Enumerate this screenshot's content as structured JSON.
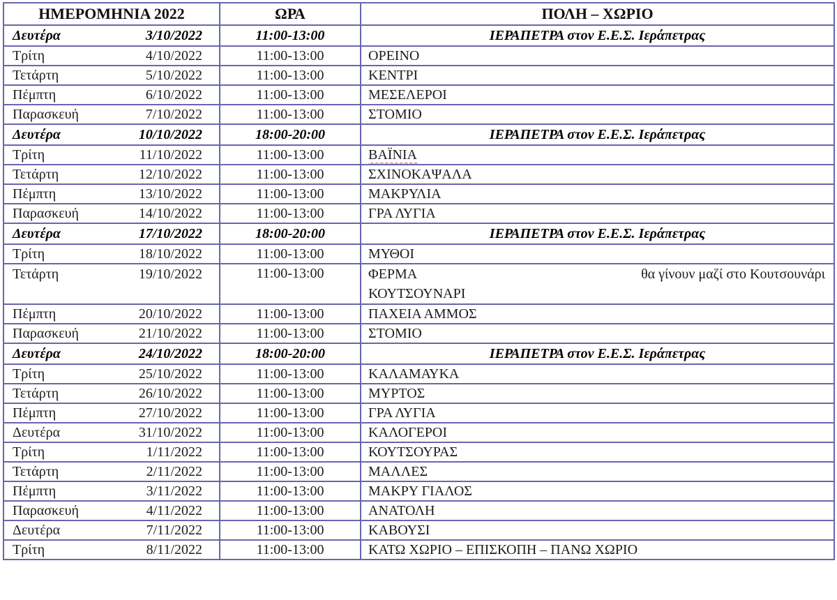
{
  "colors": {
    "table_border": "#6666b0",
    "text": "#1c1c1c",
    "section_text": "#000000",
    "spellcheck_underline": "#e05a5a",
    "background": "#ffffff"
  },
  "table": {
    "columns": [
      "ΗΜΕΡΟΜΗΝΙΑ 2022",
      "ΩΡΑ",
      "ΠΟΛΗ – ΧΩΡΙΟ"
    ],
    "rows": [
      {
        "day": "Δευτέρα",
        "date": "3/10/2022",
        "time": "11:00-13:00",
        "place": "ΙΕΡΑΠΕΤΡΑ στον Ε.Ε.Σ. Ιεράπετρας",
        "section": true
      },
      {
        "day": "Τρίτη",
        "date": "4/10/2022",
        "time": "11:00-13:00",
        "place": "ΟΡΕΙΝΟ"
      },
      {
        "day": "Τετάρτη",
        "date": "5/10/2022",
        "time": "11:00-13:00",
        "place": "ΚΕΝΤΡΙ"
      },
      {
        "day": "Πέμπτη",
        "date": "6/10/2022",
        "time": "11:00-13:00",
        "place": "ΜΕΣΕΛΕΡΟΙ"
      },
      {
        "day": "Παρασκευή",
        "date": "7/10/2022",
        "time": "11:00-13:00",
        "place": "ΣΤΟΜΙΟ"
      },
      {
        "day": "Δευτέρα",
        "date": "10/10/2022",
        "time": "18:00-20:00",
        "place": "ΙΕΡΑΠΕΤΡΑ στον Ε.Ε.Σ. Ιεράπετρας",
        "section": true
      },
      {
        "day": "Τρίτη",
        "date": "11/10/2022",
        "time": "11:00-13:00",
        "place": "ΒΑΪΝΙΑ",
        "misspelled": true
      },
      {
        "day": "Τετάρτη",
        "date": "12/10/2022",
        "time": "11:00-13:00",
        "place": "ΣΧΙΝΟΚΑΨΑΛΑ"
      },
      {
        "day": "Πέμπτη",
        "date": "13/10/2022",
        "time": "11:00-13:00",
        "place": "ΜΑΚΡΥΛΙΑ"
      },
      {
        "day": "Παρασκευή",
        "date": "14/10/2022",
        "time": "11:00-13:00",
        "place": "ΓΡΑ ΛΥΓΙΑ"
      },
      {
        "day": "Δευτέρα",
        "date": "17/10/2022",
        "time": "18:00-20:00",
        "place": "ΙΕΡΑΠΕΤΡΑ στον Ε.Ε.Σ. Ιεράπετρας",
        "section": true
      },
      {
        "day": "Τρίτη",
        "date": "18/10/2022",
        "time": "11:00-13:00",
        "place": "ΜΥΘΟΙ"
      },
      {
        "day": "Τετάρτη",
        "date": "19/10/2022",
        "time": "11:00-13:00",
        "place": "ΦΕΡΜΑ",
        "note": "θα γίνουν μαζί στο Κουτσουνάρι",
        "place_line2": "ΚΟΥΤΣΟΥΝΑΡΙ"
      },
      {
        "day": "Πέμπτη",
        "date": "20/10/2022",
        "time": "11:00-13:00",
        "place": "ΠΑΧΕΙΑ ΑΜΜΟΣ"
      },
      {
        "day": "Παρασκευή",
        "date": "21/10/2022",
        "time": "11:00-13:00",
        "place": "ΣΤΟΜΙΟ"
      },
      {
        "day": "Δευτέρα",
        "date": "24/10/2022",
        "time": "18:00-20:00",
        "place": "ΙΕΡΑΠΕΤΡΑ στον Ε.Ε.Σ. Ιεράπετρας",
        "section": true
      },
      {
        "day": "Τρίτη",
        "date": "25/10/2022",
        "time": "11:00-13:00",
        "place": "ΚΑΛΑΜΑΥΚΑ"
      },
      {
        "day": "Τετάρτη",
        "date": "26/10/2022",
        "time": "11:00-13:00",
        "place": "ΜΥΡΤΟΣ"
      },
      {
        "day": "Πέμπτη",
        "date": "27/10/2022",
        "time": "11:00-13:00",
        "place": "ΓΡΑ ΛΥΓΙΑ"
      },
      {
        "day": "Δευτέρα",
        "date": "31/10/2022",
        "time": "11:00-13:00",
        "place": "ΚΑΛΟΓΕΡΟΙ"
      },
      {
        "day": "Τρίτη",
        "date": "1/11/2022",
        "time": "11:00-13:00",
        "place": "ΚΟΥΤΣΟΥΡΑΣ"
      },
      {
        "day": "Τετάρτη",
        "date": "2/11/2022",
        "time": "11:00-13:00",
        "place": "ΜΑΛΛΕΣ"
      },
      {
        "day": "Πέμπτη",
        "date": "3/11/2022",
        "time": "11:00-13:00",
        "place": "ΜΑΚΡΥ ΓΙΑΛΟΣ"
      },
      {
        "day": "Παρασκευή",
        "date": "4/11/2022",
        "time": "11:00-13:00",
        "place": "ΑΝΑΤΟΛΗ"
      },
      {
        "day": "Δευτέρα",
        "date": "7/11/2022",
        "time": "11:00-13:00",
        "place": "ΚΑΒΟΥΣΙ"
      },
      {
        "day": "Τρίτη",
        "date": "8/11/2022",
        "time": "11:00-13:00",
        "place": "ΚΑΤΩ ΧΩΡΙΟ – ΕΠΙΣΚΟΠΗ – ΠΑΝΩ ΧΩΡΙΟ"
      }
    ]
  }
}
